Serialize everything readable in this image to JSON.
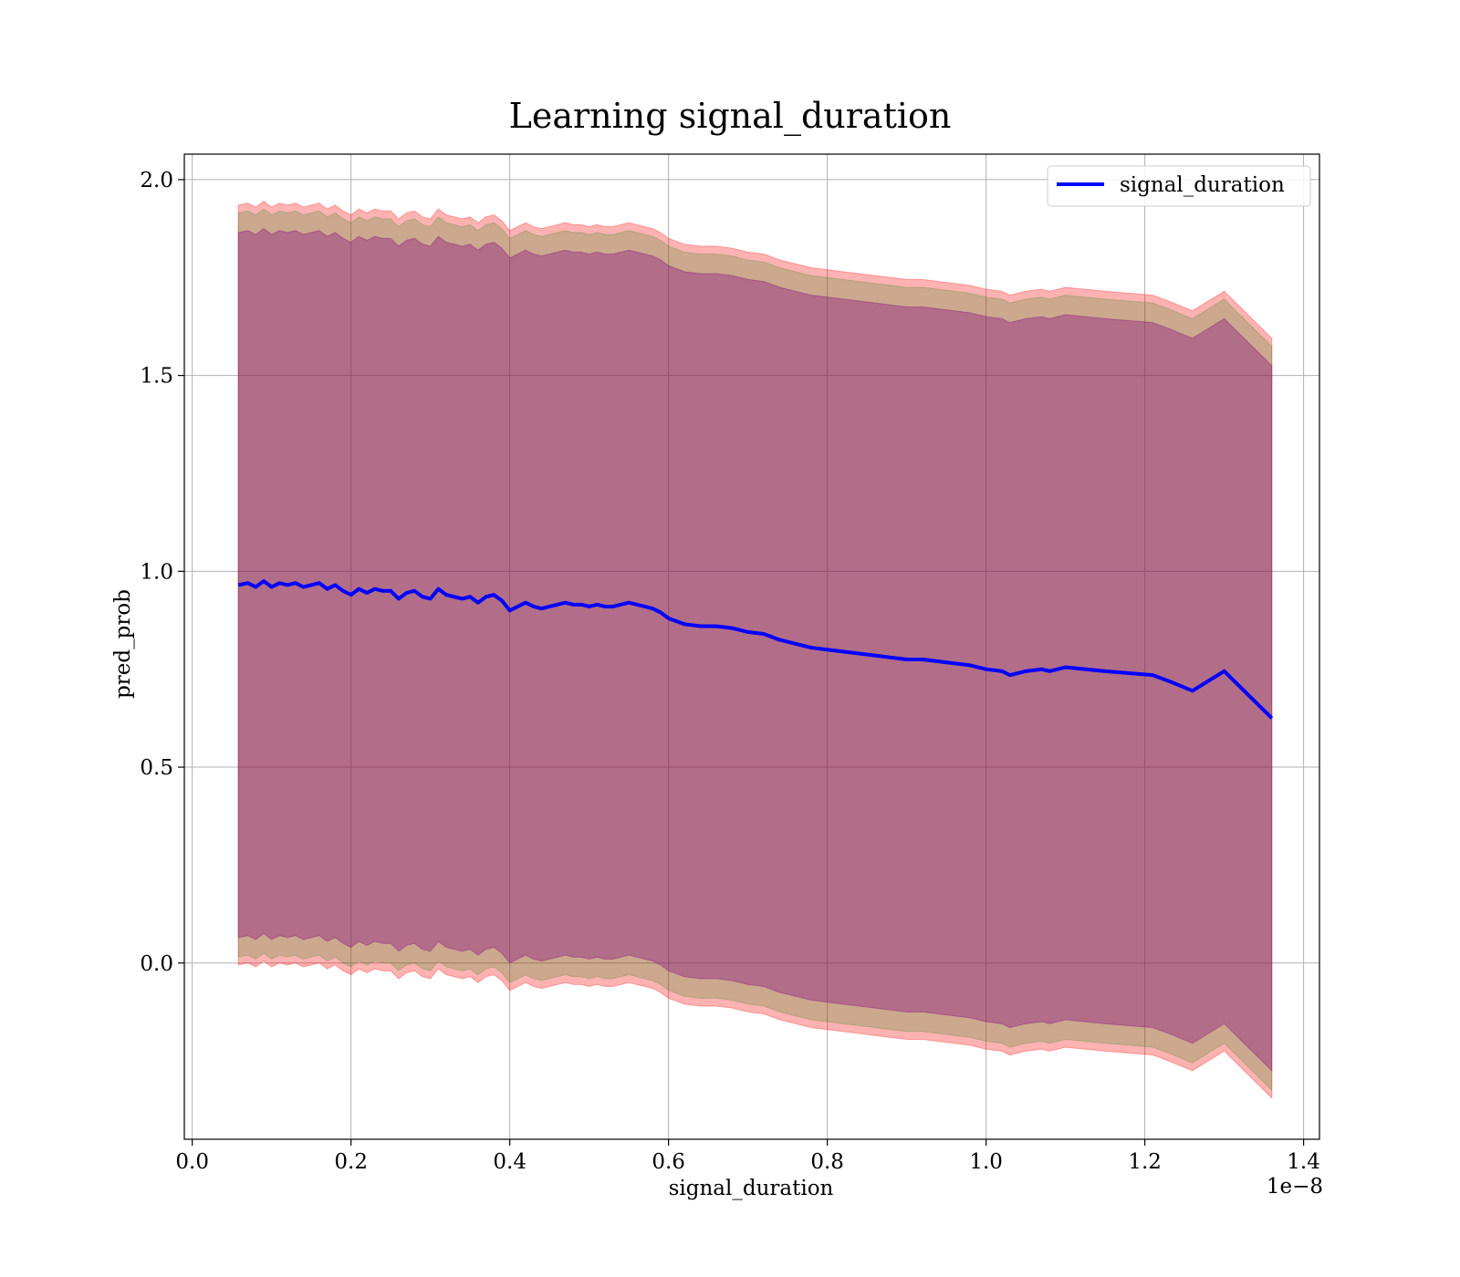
{
  "chart_data": {
    "type": "line",
    "title": "Learning signal_duration",
    "xlabel": "signal_duration",
    "ylabel": "pred_prob",
    "x_offset_text": "1e−8",
    "x_scale_factor": 1e-08,
    "xlim": [
      -0.01,
      1.42
    ],
    "ylim": [
      -0.45,
      2.065
    ],
    "x_ticks": [
      0.0,
      0.2,
      0.4,
      0.6,
      0.8,
      1.0,
      1.2,
      1.4
    ],
    "x_tick_labels": [
      "0.0",
      "0.2",
      "0.4",
      "0.6",
      "0.8",
      "1.0",
      "1.2",
      "1.4"
    ],
    "y_ticks": [
      0.0,
      0.5,
      1.0,
      1.5,
      2.0
    ],
    "y_tick_labels": [
      "0.0",
      "0.5",
      "1.0",
      "1.5",
      "2.0"
    ],
    "grid": true,
    "legend": {
      "position": "top-right",
      "entries": [
        "signal_duration"
      ]
    },
    "series": [
      {
        "name": "signal_duration",
        "color": "#0000ff",
        "x": [
          0.058,
          0.07,
          0.08,
          0.09,
          0.1,
          0.11,
          0.12,
          0.13,
          0.14,
          0.15,
          0.16,
          0.17,
          0.18,
          0.19,
          0.2,
          0.21,
          0.22,
          0.23,
          0.24,
          0.25,
          0.26,
          0.27,
          0.28,
          0.29,
          0.3,
          0.31,
          0.32,
          0.33,
          0.34,
          0.35,
          0.36,
          0.37,
          0.38,
          0.39,
          0.4,
          0.41,
          0.42,
          0.43,
          0.44,
          0.45,
          0.46,
          0.47,
          0.48,
          0.49,
          0.5,
          0.51,
          0.52,
          0.53,
          0.54,
          0.55,
          0.56,
          0.57,
          0.58,
          0.59,
          0.6,
          0.62,
          0.64,
          0.66,
          0.68,
          0.7,
          0.72,
          0.74,
          0.76,
          0.78,
          0.8,
          0.82,
          0.84,
          0.86,
          0.88,
          0.9,
          0.92,
          0.94,
          0.96,
          0.98,
          1.0,
          1.02,
          1.03,
          1.05,
          1.07,
          1.08,
          1.1,
          1.15,
          1.21,
          1.23,
          1.26,
          1.3,
          1.36
        ],
        "y": [
          0.965,
          0.97,
          0.96,
          0.975,
          0.96,
          0.97,
          0.965,
          0.97,
          0.96,
          0.965,
          0.97,
          0.955,
          0.965,
          0.95,
          0.94,
          0.955,
          0.945,
          0.955,
          0.95,
          0.95,
          0.93,
          0.945,
          0.95,
          0.935,
          0.93,
          0.955,
          0.94,
          0.935,
          0.93,
          0.935,
          0.92,
          0.935,
          0.94,
          0.925,
          0.9,
          0.91,
          0.92,
          0.91,
          0.905,
          0.91,
          0.915,
          0.92,
          0.915,
          0.915,
          0.91,
          0.915,
          0.91,
          0.91,
          0.915,
          0.92,
          0.915,
          0.91,
          0.905,
          0.895,
          0.88,
          0.865,
          0.86,
          0.86,
          0.855,
          0.845,
          0.84,
          0.825,
          0.815,
          0.805,
          0.8,
          0.795,
          0.79,
          0.785,
          0.78,
          0.775,
          0.775,
          0.77,
          0.765,
          0.76,
          0.75,
          0.745,
          0.735,
          0.745,
          0.75,
          0.745,
          0.755,
          0.745,
          0.735,
          0.72,
          0.695,
          0.745,
          0.625
        ]
      }
    ],
    "bands": [
      {
        "name": "outer",
        "color": "#ff0000",
        "opacity": 0.3,
        "half_width": 0.97
      },
      {
        "name": "middle",
        "color": "#008000",
        "opacity": 0.2,
        "half_width": 0.95
      },
      {
        "name": "inner",
        "color": "#800080",
        "opacity": 0.35,
        "half_width": 0.9
      }
    ]
  }
}
